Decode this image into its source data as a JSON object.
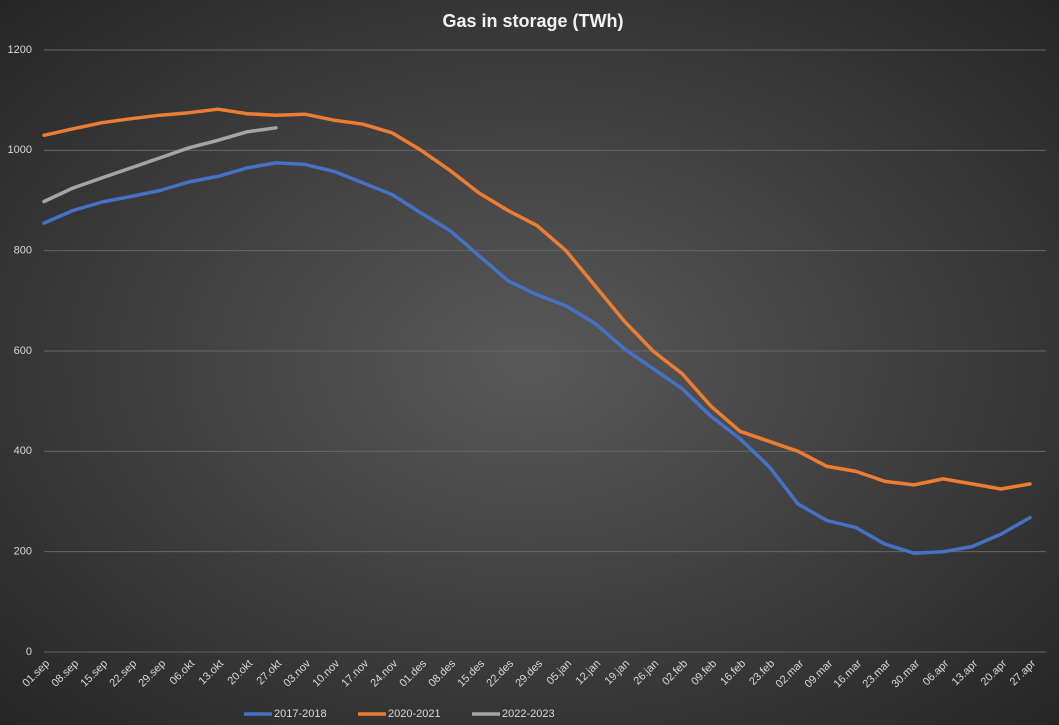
{
  "chart_data": {
    "type": "line",
    "title": "Gas in storage (TWh)",
    "categories": [
      "01.sep",
      "08.sep",
      "15.sep",
      "22.sep",
      "29.sep",
      "06.okt",
      "13.okt",
      "20.okt",
      "27.okt",
      "03.nov",
      "10.nov",
      "17.nov",
      "24.nov",
      "01.des",
      "08.des",
      "15.des",
      "22.des",
      "29.des",
      "05.jan",
      "12.jan",
      "19.jan",
      "26.jan",
      "02.feb",
      "09.feb",
      "16.feb",
      "23.feb",
      "02.mar",
      "09.mar",
      "16.mar",
      "23.mar",
      "30.mar",
      "06.apr",
      "13.apr",
      "20.apr",
      "27.apr"
    ],
    "series": [
      {
        "name": "2017-2018",
        "color": "#4472c4",
        "values": [
          855,
          880,
          897,
          908,
          920,
          937,
          948,
          965,
          975,
          972,
          958,
          935,
          912,
          875,
          840,
          790,
          740,
          712,
          690,
          655,
          605,
          565,
          525,
          470,
          425,
          370,
          295,
          262,
          248,
          215,
          197,
          200,
          210,
          235,
          268
        ]
      },
      {
        "name": "2020-2021",
        "color": "#ed7d31",
        "values": [
          1030,
          1043,
          1055,
          1063,
          1070,
          1075,
          1082,
          1073,
          1070,
          1072,
          1060,
          1052,
          1035,
          1000,
          960,
          915,
          880,
          850,
          800,
          730,
          660,
          600,
          555,
          490,
          440,
          420,
          400,
          370,
          360,
          340,
          333,
          345,
          335,
          325,
          335
        ]
      },
      {
        "name": "2022-2023",
        "color": "#a5a5a5",
        "values": [
          898,
          925,
          945,
          965,
          985,
          1005,
          1020,
          1037,
          1045,
          null,
          null,
          null,
          null,
          null,
          null,
          null,
          null,
          null,
          null,
          null,
          null,
          null,
          null,
          null,
          null,
          null,
          null,
          null,
          null,
          null,
          null,
          null,
          null,
          null,
          null
        ]
      }
    ],
    "ylim": [
      0,
      1200
    ],
    "yticks": [
      0,
      200,
      400,
      600,
      800,
      1000,
      1200
    ],
    "grid": true,
    "legend": "bottom"
  }
}
